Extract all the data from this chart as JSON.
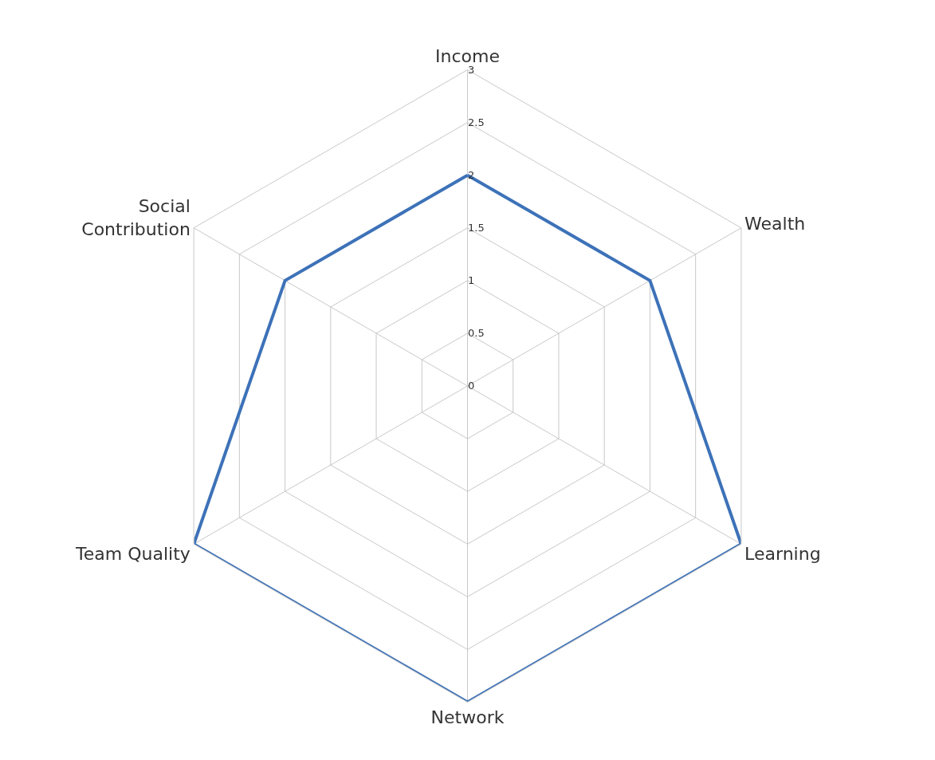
{
  "chart_data": {
    "type": "radar",
    "categories": [
      "Income",
      "Wealth",
      "Learning",
      "Network",
      "Team Quality",
      "Social Contribution"
    ],
    "series": [
      {
        "color": "#3d72b8",
        "values": [
          2,
          2,
          3,
          3,
          3,
          2
        ]
      }
    ],
    "ylim": [
      0,
      3
    ],
    "yticks": [
      0,
      0.5,
      1,
      1.5,
      2,
      2.5,
      3
    ],
    "grid": true,
    "marker": "none",
    "line_style": "solid"
  }
}
